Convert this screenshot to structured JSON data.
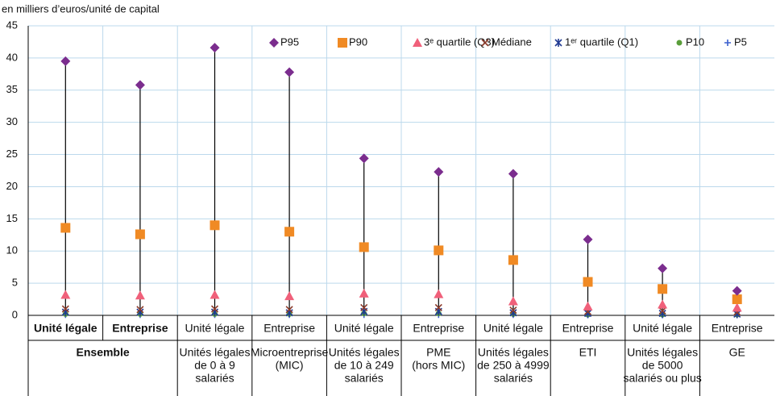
{
  "chart_data": {
    "type": "dot-range",
    "y_label": "en milliers d’euros/unité de capital",
    "categories": [
      "Unité légale",
      "Entreprise",
      "Unité légale",
      "Entreprise",
      "Unité légale",
      "Entreprise",
      "Unité légale",
      "Entreprise",
      "Unité légale",
      "Entreprise"
    ],
    "groups": [
      {
        "lines": [
          "Ensemble"
        ],
        "span": 2
      },
      {
        "lines": [
          "Unités légales",
          "de 0 à 9",
          "salariés"
        ],
        "span": 1
      },
      {
        "lines": [
          "Microentreprise",
          "(MIC)"
        ],
        "span": 1
      },
      {
        "lines": [
          "Unités légales",
          "de 10 à 249",
          "salariés"
        ],
        "span": 1
      },
      {
        "lines": [
          "PME",
          "(hors MIC)"
        ],
        "span": 1
      },
      {
        "lines": [
          "Unités légales",
          "de 250 à  4999",
          "salariés"
        ],
        "span": 1
      },
      {
        "lines": [
          "ETI"
        ],
        "span": 1
      },
      {
        "lines": [
          "Unités légales",
          "de 5000",
          "salariés ou plus"
        ],
        "span": 1
      },
      {
        "lines": [
          "GE"
        ],
        "span": 1
      }
    ],
    "series": [
      {
        "name": "P95",
        "color": "#7b2d8e",
        "marker": "diamond",
        "values": [
          39.5,
          35.8,
          41.6,
          37.8,
          24.4,
          22.3,
          22.0,
          11.8,
          7.3,
          3.8
        ]
      },
      {
        "name": "P90",
        "color": "#f08a24",
        "marker": "square",
        "values": [
          13.6,
          12.6,
          14.0,
          13.0,
          10.6,
          10.1,
          8.6,
          5.2,
          4.1,
          2.5
        ]
      },
      {
        "name": "3ᵉ quartile (Q3)",
        "color": "#f0607a",
        "marker": "triangle",
        "values": [
          3.2,
          3.1,
          3.2,
          3.0,
          3.4,
          3.3,
          2.2,
          1.4,
          1.7,
          1.2
        ]
      },
      {
        "name": "Médiane",
        "color": "#8b3a2a",
        "marker": "cross",
        "values": [
          1.0,
          0.9,
          1.0,
          0.9,
          1.2,
          1.2,
          0.8,
          0.6,
          0.7,
          0.5
        ]
      },
      {
        "name": "1ᵉʳ quartile (Q1)",
        "color": "#1f3a93",
        "marker": "asterisk",
        "values": [
          0.5,
          0.5,
          0.5,
          0.4,
          0.6,
          0.6,
          0.4,
          0.3,
          0.3,
          0.2
        ]
      },
      {
        "name": "P10",
        "color": "#5a9e3a",
        "marker": "circle",
        "values": [
          0.2,
          0.2,
          0.2,
          0.2,
          0.3,
          0.3,
          0.2,
          0.1,
          0.1,
          0.1
        ]
      },
      {
        "name": "P5",
        "color": "#3a5fcd",
        "marker": "plus",
        "values": [
          0.1,
          0.1,
          0.1,
          0.1,
          0.1,
          0.1,
          0.1,
          0.05,
          0.05,
          0.05
        ]
      }
    ],
    "ylim": [
      0,
      45
    ],
    "yticks": [
      0,
      5,
      10,
      15,
      20,
      25,
      30,
      35,
      40,
      45
    ],
    "grid": true
  }
}
